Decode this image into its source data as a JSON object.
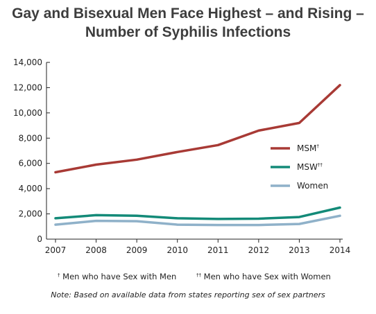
{
  "title": {
    "line1": "Gay and Bisexual Men Face Highest – and Rising –",
    "line2": "Number of Syphilis Infections"
  },
  "chart_data": {
    "type": "line",
    "x": [
      "2007",
      "2008",
      "2009",
      "2010",
      "2011",
      "2012",
      "2013",
      "2014"
    ],
    "ylim": [
      0,
      14000
    ],
    "yticks": [
      0,
      2000,
      4000,
      6000,
      8000,
      10000,
      12000,
      14000
    ],
    "ytick_labels": [
      "0",
      "2,000",
      "4,000",
      "6,000",
      "8,000",
      "10,000",
      "12,000",
      "14,000"
    ],
    "grid": false,
    "legend_position": "right",
    "series": [
      {
        "name": "MSM",
        "mark": "†",
        "color": "#a83a35",
        "values": [
          5300,
          5900,
          6300,
          6900,
          7450,
          8600,
          9200,
          12200
        ]
      },
      {
        "name": "MSW",
        "mark": "††",
        "color": "#138a78",
        "values": [
          1650,
          1900,
          1850,
          1650,
          1600,
          1620,
          1750,
          2500
        ]
      },
      {
        "name": "Women",
        "mark": "",
        "color": "#8fb1c9",
        "values": [
          1150,
          1450,
          1420,
          1150,
          1120,
          1120,
          1200,
          1850
        ]
      }
    ]
  },
  "footnotes": {
    "msm_mark": "†",
    "msm_text": "Men who have Sex with Men",
    "msw_mark": "††",
    "msw_text": "Men who have Sex with Women",
    "note": "Note: Based on available data from states reporting sex of sex partners"
  }
}
